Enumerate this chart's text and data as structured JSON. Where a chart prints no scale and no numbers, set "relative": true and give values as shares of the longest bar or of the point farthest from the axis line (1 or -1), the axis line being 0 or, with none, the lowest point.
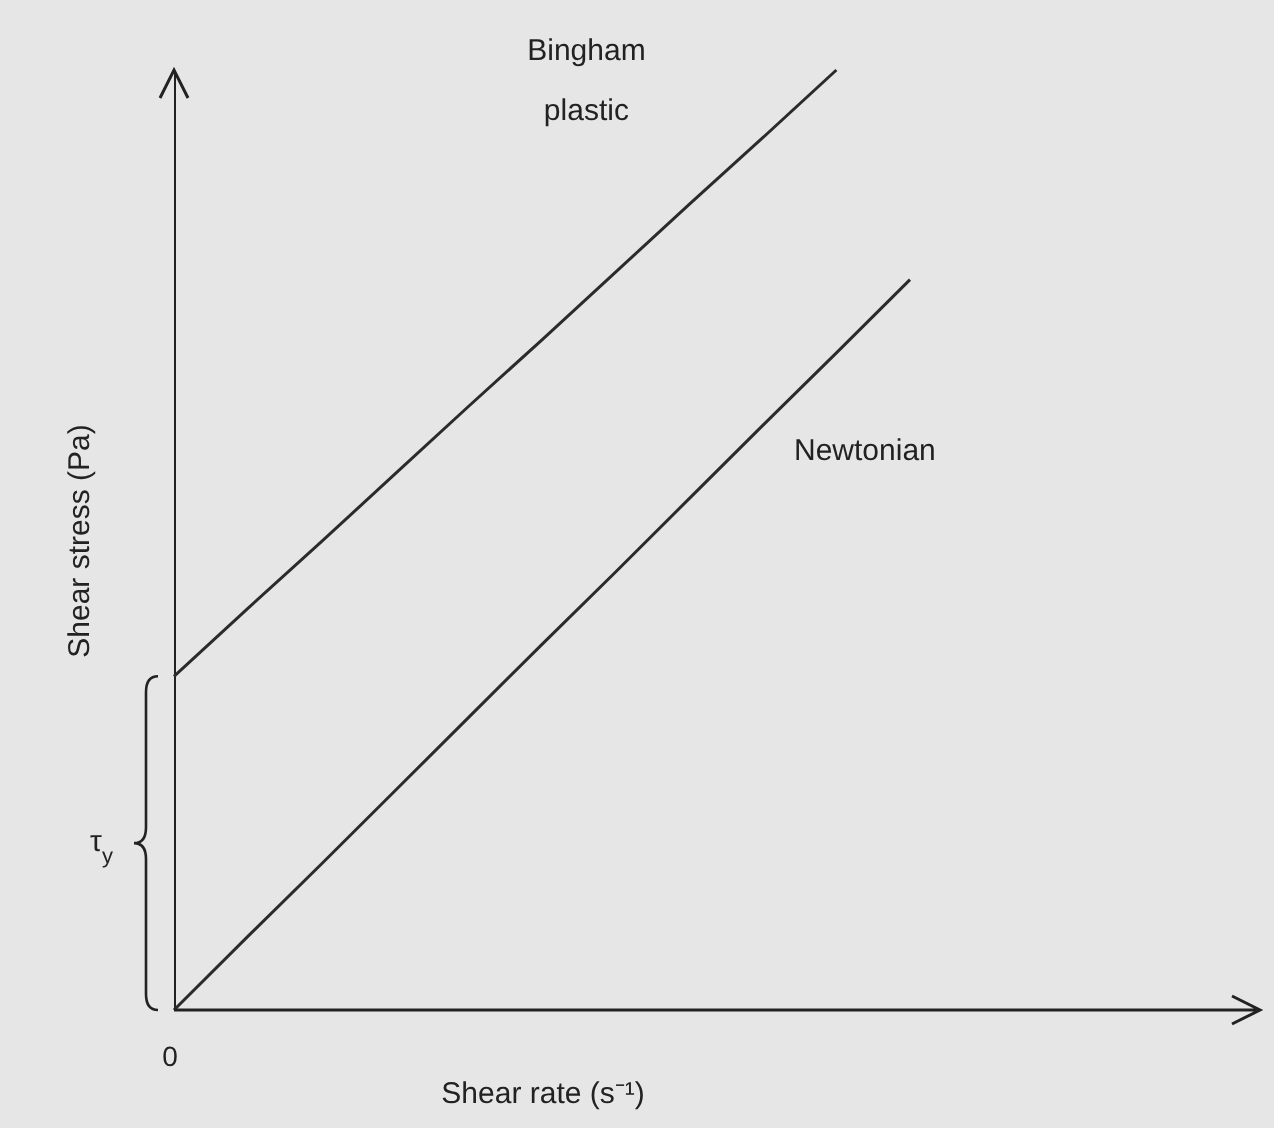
{
  "chart_data": {
    "type": "line",
    "relative": true,
    "xlabel": "Shear rate (s⁻¹)",
    "ylabel": "Shear stress (Pa)",
    "legend": false,
    "marker": "none",
    "line_style": "solid",
    "annotations": [
      "τ$_{y}$",
      "0"
    ],
    "categories": [
      null,
      null,
      null,
      null,
      null,
      null,
      null,
      null,
      null,
      null,
      null
    ],
    "series": [
      {
        "name": "Bingham plastic",
        "color": "#2b2b2b",
        "values": [
          0.355,
          0.427,
          0.498,
          0.57,
          0.642,
          0.713,
          0.785,
          0.857,
          0.928,
          1,
          null
        ]
      },
      {
        "name": "Newtonian",
        "color": "#2b2b2b",
        "values": [
          0,
          0.078,
          0.155,
          0.233,
          0.311,
          0.389,
          0.466,
          0.544,
          0.622,
          0.699,
          0.777
        ]
      }
    ]
  }
}
